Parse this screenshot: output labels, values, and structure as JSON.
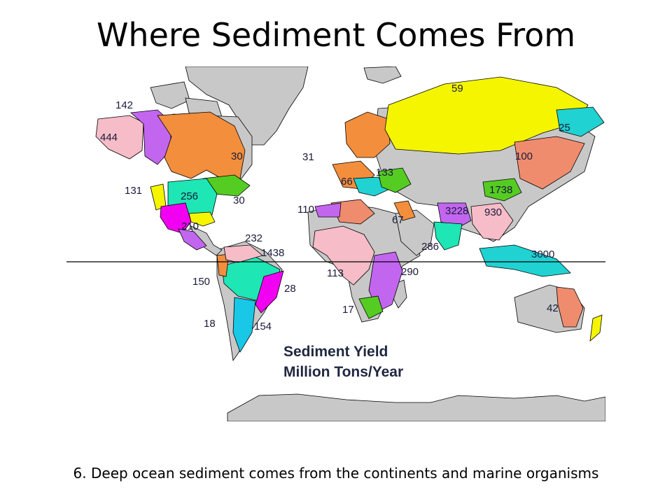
{
  "slide": {
    "title": "Where Sediment Comes From",
    "caption": "6. Deep ocean sediment comes from the continents and marine organisms"
  },
  "map": {
    "legend_title": "Sediment Yield",
    "legend_subtitle": "Million Tons/Year",
    "colors": {
      "land": "#c8c8c8",
      "pink": "#f6bcc8",
      "violet": "#c266f0",
      "orange": "#f28e3c",
      "yellow": "#f5f500",
      "teal": "#20d2d2",
      "green": "#55cc22",
      "magenta": "#f200f2",
      "aqua": "#1ee6b4",
      "salmon": "#f08c6e",
      "cyan": "#18c8e6"
    },
    "labels": [
      {
        "id": "alaska",
        "text": "444"
      },
      {
        "id": "bering",
        "text": "142"
      },
      {
        "id": "pacific-nw",
        "text": "131"
      },
      {
        "id": "mississippi",
        "text": "256"
      },
      {
        "id": "labrador",
        "text": "30"
      },
      {
        "id": "atlantic-us",
        "text": "30"
      },
      {
        "id": "mexico",
        "text": "210"
      },
      {
        "id": "caribbean",
        "text": "232"
      },
      {
        "id": "amazon",
        "text": "1438"
      },
      {
        "id": "andes-north",
        "text": "150"
      },
      {
        "id": "brazil-east",
        "text": "28"
      },
      {
        "id": "andes-south",
        "text": "18"
      },
      {
        "id": "parana",
        "text": "154"
      },
      {
        "id": "iceland",
        "text": "31"
      },
      {
        "id": "europe-west",
        "text": "66"
      },
      {
        "id": "black-sea",
        "text": "133"
      },
      {
        "id": "west-africa",
        "text": "110"
      },
      {
        "id": "mideast",
        "text": "67"
      },
      {
        "id": "congo",
        "text": "113"
      },
      {
        "id": "southern-africa",
        "text": "17"
      },
      {
        "id": "east-africa",
        "text": "290"
      },
      {
        "id": "arctic",
        "text": "59"
      },
      {
        "id": "siberia-east",
        "text": "25"
      },
      {
        "id": "manchuria",
        "text": "100"
      },
      {
        "id": "yellow-river",
        "text": "1738"
      },
      {
        "id": "ganges",
        "text": "3228"
      },
      {
        "id": "yangtze",
        "text": "930"
      },
      {
        "id": "india-west",
        "text": "286"
      },
      {
        "id": "indonesia",
        "text": "3000"
      },
      {
        "id": "australia-east",
        "text": "42"
      }
    ]
  }
}
